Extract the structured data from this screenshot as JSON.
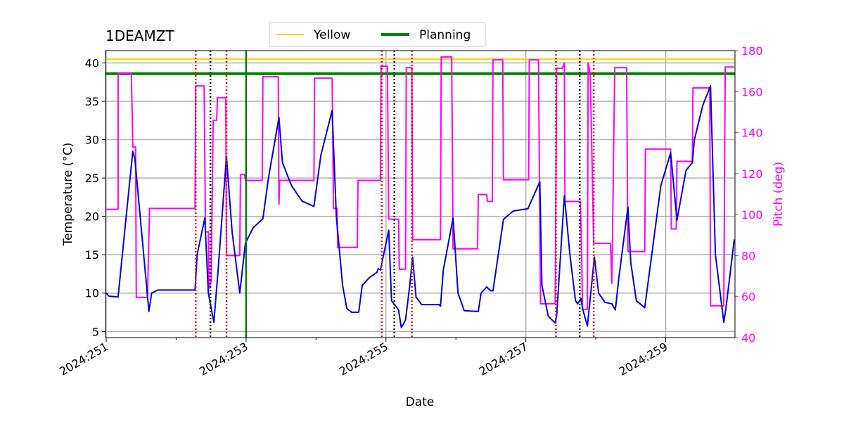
{
  "chart_data": {
    "type": "line",
    "title": "1DEAMZT",
    "xlabel": "Date",
    "ylabel": "Temperature (°C)",
    "y2label": "Pitch (deg)",
    "y2color": "#ff00ff",
    "grid": true,
    "legend": "top",
    "xlim": [
      250.99,
      259.99
    ],
    "xticks": [
      {
        "value": 251,
        "label": "2024:251"
      },
      {
        "value": 253,
        "label": "2024:253"
      },
      {
        "value": 255,
        "label": "2024:255"
      },
      {
        "value": 257,
        "label": "2024:257"
      },
      {
        "value": 259,
        "label": "2024:259"
      }
    ],
    "xminorticks": [
      252,
      254,
      256,
      258
    ],
    "ylim": [
      4.2,
      41.6
    ],
    "yticks": [
      5,
      10,
      15,
      20,
      25,
      30,
      35,
      40
    ],
    "y2lim": [
      40,
      180
    ],
    "y2ticks": [
      40,
      60,
      80,
      100,
      120,
      140,
      160,
      180
    ],
    "hlines": [
      {
        "name": "Yellow",
        "color": "#ffd700",
        "value": 40.5
      },
      {
        "name": "Planning",
        "color": "#008000",
        "value": 38.6
      }
    ],
    "vlines": [
      {
        "x": 252.28,
        "color": "#ff0000",
        "style": "dotted"
      },
      {
        "x": 252.72,
        "color": "#ff0000",
        "style": "dotted"
      },
      {
        "x": 254.94,
        "color": "#ff0000",
        "style": "dotted"
      },
      {
        "x": 255.37,
        "color": "#ff0000",
        "style": "dotted"
      },
      {
        "x": 257.43,
        "color": "#ff0000",
        "style": "dotted"
      },
      {
        "x": 257.97,
        "color": "#ff0000",
        "style": "dotted"
      },
      {
        "x": 252.49,
        "color": "#000000",
        "style": "dotted"
      },
      {
        "x": 255.12,
        "color": "#000000",
        "style": "dotted"
      },
      {
        "x": 257.77,
        "color": "#000000",
        "style": "dotted"
      },
      {
        "x": 253.0,
        "color": "#008000",
        "style": "solid"
      }
    ],
    "series": [
      {
        "color": "#0000dd",
        "axis": "y",
        "x": [
          251.0,
          251.04,
          251.17,
          251.38,
          251.41,
          251.61,
          251.65,
          251.74,
          252.27,
          252.3,
          252.41,
          252.46,
          252.54,
          252.6,
          252.72,
          252.8,
          252.91,
          252.99,
          253.1,
          253.24,
          253.32,
          253.47,
          253.52,
          253.65,
          253.8,
          253.97,
          254.07,
          254.23,
          254.29,
          254.38,
          254.44,
          254.51,
          254.61,
          254.66,
          254.76,
          254.87,
          254.89,
          254.92,
          255.04,
          255.08,
          255.14,
          255.18,
          255.22,
          255.28,
          255.34,
          255.38,
          255.43,
          255.51,
          255.76,
          255.78,
          255.82,
          255.96,
          256.03,
          256.12,
          256.32,
          256.36,
          256.44,
          256.5,
          256.53,
          256.68,
          256.82,
          257.03,
          257.2,
          257.23,
          257.32,
          257.42,
          257.44,
          257.55,
          257.63,
          257.71,
          257.74,
          257.79,
          257.81,
          257.88,
          257.98,
          258.04,
          258.13,
          258.23,
          258.28,
          258.33,
          258.46,
          258.5,
          258.58,
          258.7,
          258.93,
          259.07,
          259.16,
          259.29,
          259.38,
          259.41,
          259.53,
          259.64,
          259.71,
          259.83,
          259.86,
          259.98
        ],
        "values": [
          10.0,
          9.6,
          9.5,
          28.5,
          27.5,
          7.6,
          10.0,
          10.4,
          10.4,
          15.0,
          19.8,
          10.0,
          6.2,
          13.0,
          27.8,
          18.0,
          10.0,
          16.5,
          18.5,
          19.7,
          25.0,
          32.9,
          27.0,
          24.0,
          22.0,
          21.3,
          28.0,
          33.8,
          20.0,
          11.0,
          8.0,
          7.5,
          7.5,
          11.0,
          12.0,
          12.7,
          13.2,
          13.0,
          18.2,
          9.0,
          8.3,
          7.8,
          5.5,
          6.5,
          11.0,
          14.7,
          9.5,
          8.5,
          8.5,
          8.3,
          13.0,
          19.8,
          10.0,
          7.7,
          7.6,
          10.0,
          10.8,
          10.3,
          10.3,
          19.6,
          20.7,
          21.0,
          24.5,
          11.0,
          7.0,
          6.1,
          7.0,
          22.7,
          15.0,
          9.0,
          8.6,
          9.3,
          8.0,
          5.7,
          14.7,
          10.0,
          8.8,
          8.6,
          7.8,
          12.0,
          21.2,
          14.0,
          9.0,
          8.1,
          24.0,
          28.3,
          19.5,
          26.0,
          27.0,
          30.0,
          34.5,
          37.0,
          15.0,
          6.2,
          8.0,
          17.0
        ]
      },
      {
        "color": "#ff00ff",
        "axis": "y2",
        "x": [
          251.0,
          251.17,
          251.17,
          251.36,
          251.38,
          251.42,
          251.43,
          251.59,
          251.62,
          252.27,
          252.28,
          252.4,
          252.42,
          252.46,
          252.47,
          252.5,
          252.53,
          252.58,
          252.59,
          252.71,
          252.72,
          252.91,
          252.92,
          252.98,
          252.99,
          253.23,
          253.24,
          253.46,
          253.47,
          253.48,
          253.97,
          253.98,
          254.23,
          254.25,
          254.3,
          254.31,
          254.59,
          254.6,
          254.92,
          254.93,
          255.02,
          255.04,
          255.18,
          255.19,
          255.28,
          255.29,
          255.37,
          255.38,
          255.78,
          255.79,
          255.94,
          255.96,
          256.31,
          256.32,
          256.44,
          256.45,
          256.52,
          256.53,
          256.67,
          256.68,
          257.04,
          257.05,
          257.18,
          257.21,
          257.42,
          257.44,
          257.52,
          257.55,
          257.56,
          257.78,
          257.8,
          257.81,
          257.88,
          257.89,
          257.92,
          257.97,
          258.21,
          258.23,
          258.27,
          258.44,
          258.46,
          258.7,
          258.71,
          259.07,
          259.08,
          259.15,
          259.16,
          259.38,
          259.39,
          259.63,
          259.64,
          259.83,
          259.85,
          259.98
        ],
        "values": [
          102.6,
          102.6,
          169,
          169,
          133,
          133,
          59.6,
          59.6,
          103,
          103,
          162.8,
          162.8,
          91.6,
          91.6,
          64,
          67.5,
          146,
          146,
          157,
          157,
          80,
          80,
          119.5,
          119.5,
          116.7,
          116.7,
          167.3,
          167.3,
          105,
          116.7,
          116.7,
          166.6,
          166.6,
          103,
          103,
          84,
          84,
          116.7,
          116.7,
          172.4,
          172.4,
          97.8,
          97.8,
          73.4,
          73.4,
          171.7,
          171.7,
          87.8,
          87.8,
          176.9,
          176.9,
          83.3,
          83.3,
          109.8,
          109.8,
          106.4,
          106.4,
          175.5,
          175.5,
          117,
          117,
          175.5,
          175.5,
          56.5,
          56.5,
          171.4,
          171.4,
          174,
          106.4,
          106.4,
          77.8,
          53.8,
          53.8,
          174,
          169,
          86,
          86,
          66.5,
          171.7,
          171.7,
          82,
          82,
          132,
          132,
          93,
          93,
          126,
          126,
          161.8,
          161.8,
          55.5,
          55.5,
          172,
          172
        ]
      }
    ]
  }
}
